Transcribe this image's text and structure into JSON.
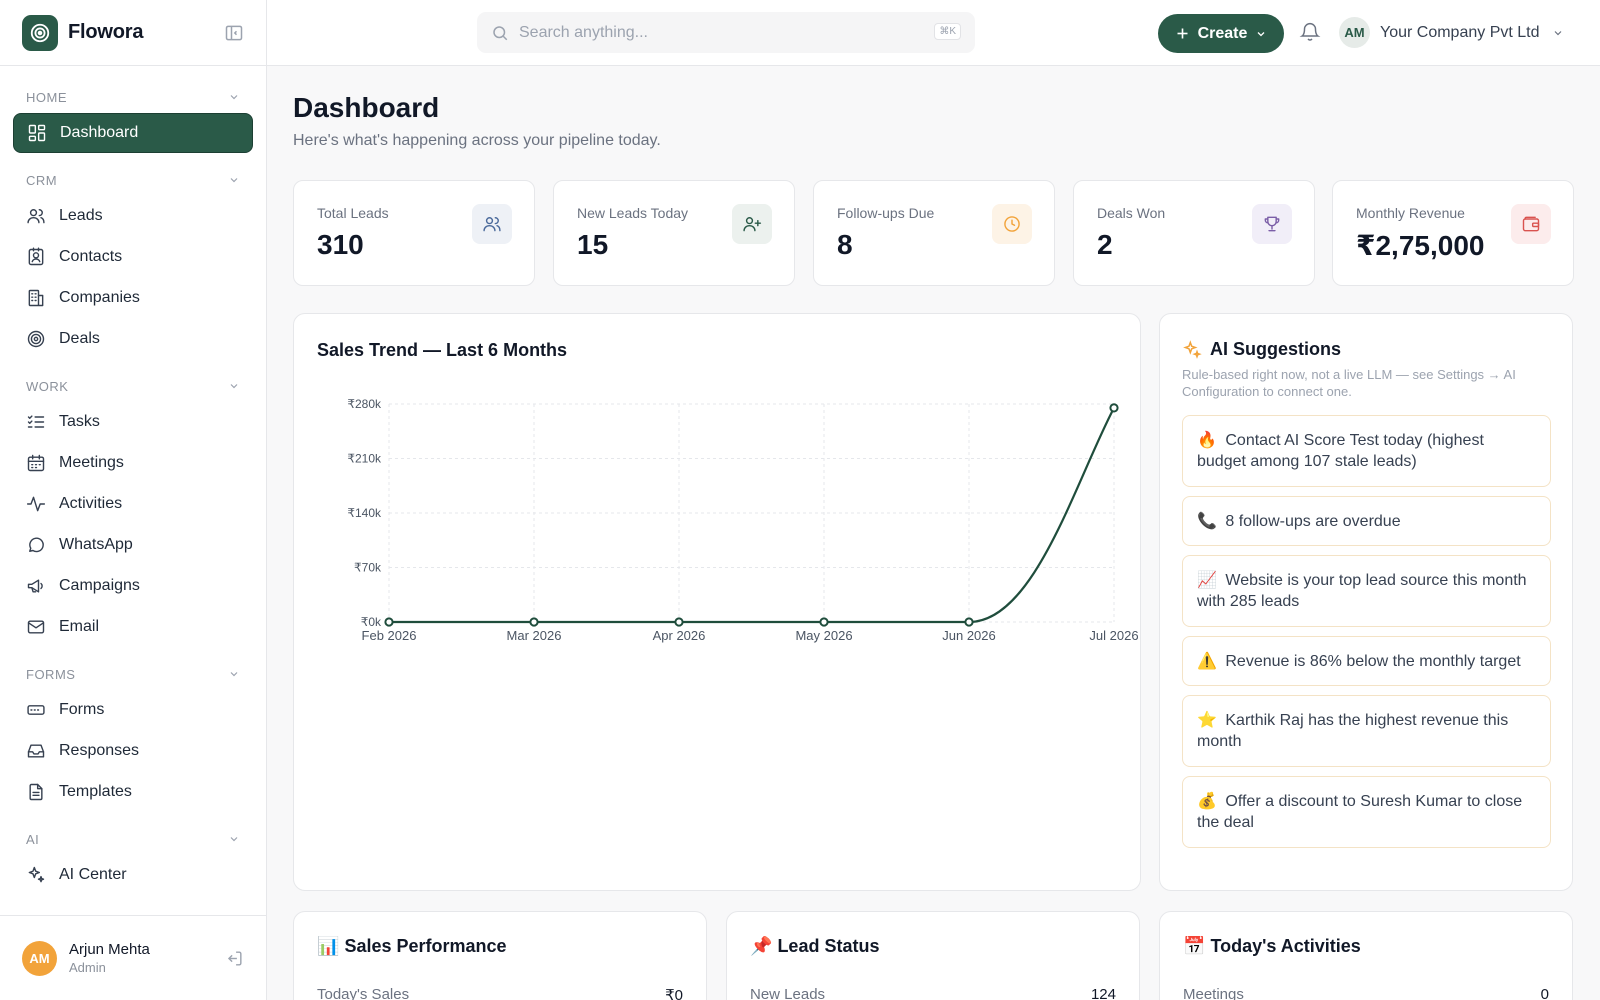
{
  "brand": {
    "name": "Flowora"
  },
  "sidebar": {
    "sections": [
      {
        "title": "HOME",
        "items": [
          {
            "label": "Dashboard",
            "icon": "dashboard-icon",
            "active": true
          }
        ]
      },
      {
        "title": "CRM",
        "items": [
          {
            "label": "Leads",
            "icon": "users-icon"
          },
          {
            "label": "Contacts",
            "icon": "contact-card-icon"
          },
          {
            "label": "Companies",
            "icon": "building-icon"
          },
          {
            "label": "Deals",
            "icon": "target-icon"
          }
        ]
      },
      {
        "title": "WORK",
        "items": [
          {
            "label": "Tasks",
            "icon": "checklist-icon"
          },
          {
            "label": "Meetings",
            "icon": "calendar-icon"
          },
          {
            "label": "Activities",
            "icon": "activity-icon"
          },
          {
            "label": "WhatsApp",
            "icon": "chat-bubble-icon"
          },
          {
            "label": "Campaigns",
            "icon": "megaphone-icon"
          },
          {
            "label": "Email",
            "icon": "mail-icon"
          }
        ]
      },
      {
        "title": "FORMS",
        "items": [
          {
            "label": "Forms",
            "icon": "form-input-icon"
          },
          {
            "label": "Responses",
            "icon": "inbox-icon"
          },
          {
            "label": "Templates",
            "icon": "file-text-icon"
          }
        ]
      },
      {
        "title": "AI",
        "items": [
          {
            "label": "AI Center",
            "icon": "sparkles-icon"
          }
        ]
      }
    ],
    "user": {
      "initials": "AM",
      "name": "Arjun Mehta",
      "role": "Admin"
    }
  },
  "topbar": {
    "search_placeholder": "Search anything...",
    "search_shortcut": "⌘K",
    "create_label": "Create",
    "company_initials": "AM",
    "company_name": "Your Company Pvt Ltd"
  },
  "main": {
    "title": "Dashboard",
    "subtitle": "Here's what's happening across your pipeline today."
  },
  "stats": [
    {
      "label": "Total Leads",
      "value": "310",
      "icon": "users-icon",
      "tint": "#eef1f6",
      "color": "#4b6a9b"
    },
    {
      "label": "New Leads Today",
      "value": "15",
      "icon": "user-plus-icon",
      "tint": "#ecf1ee",
      "color": "#2a5a48"
    },
    {
      "label": "Follow-ups Due",
      "value": "8",
      "icon": "clock-icon",
      "tint": "#fdf3e6",
      "color": "#f2a33a"
    },
    {
      "label": "Deals Won",
      "value": "2",
      "icon": "trophy-icon",
      "tint": "#f1eef8",
      "color": "#7b5ea7"
    },
    {
      "label": "Monthly Revenue",
      "value": "₹2,75,000",
      "icon": "wallet-icon",
      "tint": "#fcecec",
      "color": "#d9534f"
    }
  ],
  "sales_trend": {
    "title": "Sales Trend — Last 6 Months"
  },
  "chart_data": {
    "type": "line",
    "title": "Sales Trend — Last 6 Months",
    "categories": [
      "Feb 2026",
      "Mar 2026",
      "Apr 2026",
      "May 2026",
      "Jun 2026",
      "Jul 2026"
    ],
    "values": [
      0,
      0,
      0,
      0,
      0,
      275000
    ],
    "ylim": [
      0,
      280000
    ],
    "yticks": [
      0,
      70000,
      140000,
      210000,
      280000
    ],
    "ytick_labels": [
      "₹0k",
      "₹70k",
      "₹140k",
      "₹210k",
      "₹280k"
    ],
    "line_color": "#1f4d3c",
    "grid": true
  },
  "ai": {
    "title": "AI Suggestions",
    "note": "Rule-based right now, not a live LLM — see Settings → AI Configuration to connect one.",
    "suggestions": [
      {
        "emoji": "🔥",
        "text": "Contact AI Score Test today (highest budget among 107 stale leads)"
      },
      {
        "emoji": "📞",
        "text": "8 follow-ups are overdue"
      },
      {
        "emoji": "📈",
        "text": "Website is your top lead source this month with 285 leads"
      },
      {
        "emoji": "⚠️",
        "text": "Revenue is 86% below the monthly target"
      },
      {
        "emoji": "⭐",
        "text": "Karthik Raj has the highest revenue this month"
      },
      {
        "emoji": "💰",
        "text": "Offer a discount to Suresh Kumar to close the deal"
      }
    ]
  },
  "bottom": [
    {
      "emoji": "📊",
      "title": "Sales Performance",
      "row_label": "Today's Sales",
      "row_value": "₹0"
    },
    {
      "emoji": "📌",
      "title": "Lead Status",
      "row_label": "New Leads",
      "row_value": "124"
    },
    {
      "emoji": "📅",
      "title": "Today's Activities",
      "row_label": "Meetings",
      "row_value": "0"
    }
  ],
  "colors": {
    "brand": "#2a5a48",
    "accent": "#f2a33a"
  }
}
